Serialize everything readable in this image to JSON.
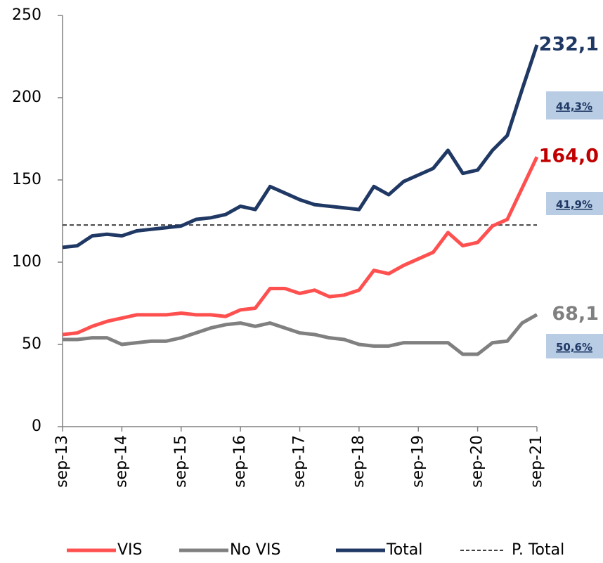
{
  "chart_data": {
    "type": "line",
    "categories": [
      "sep-13",
      null,
      null,
      null,
      "sep-14",
      null,
      null,
      null,
      "sep-15",
      null,
      null,
      null,
      "sep-16",
      null,
      null,
      null,
      "sep-17",
      null,
      null,
      null,
      "sep-18",
      null,
      null,
      null,
      "sep-19",
      null,
      null,
      null,
      "sep-20",
      null,
      null,
      null,
      "sep-21"
    ],
    "series": [
      {
        "name": "VIS",
        "color": "#ff5050",
        "label_color": "#c00000",
        "values": [
          56,
          57,
          61,
          64,
          66,
          68,
          68,
          68,
          69,
          68,
          68,
          67,
          71,
          72,
          84,
          84,
          81,
          83,
          79,
          80,
          83,
          95,
          93,
          98,
          102,
          106,
          118,
          110,
          112,
          122,
          126,
          145,
          164.0
        ],
        "value_labels": [
          null,
          null,
          null,
          null,
          null,
          null,
          null,
          null,
          null,
          null,
          null,
          null,
          null,
          null,
          null,
          null,
          null,
          null,
          null,
          null,
          null,
          null,
          null,
          null,
          null,
          null,
          null,
          null,
          null,
          null,
          null,
          null,
          "164,0"
        ]
      },
      {
        "name": "No VIS",
        "color": "#808080",
        "label_color": "#808080",
        "values": [
          53,
          53,
          54,
          54,
          50,
          51,
          52,
          52,
          54,
          57,
          60,
          62,
          63,
          61,
          63,
          60,
          57,
          56,
          54,
          53,
          50,
          49,
          49,
          51,
          51,
          51,
          51,
          44,
          44,
          51,
          52,
          63,
          68.1
        ],
        "value_labels": [
          null,
          null,
          null,
          null,
          null,
          null,
          null,
          null,
          null,
          null,
          null,
          null,
          null,
          null,
          null,
          null,
          null,
          null,
          null,
          null,
          null,
          null,
          null,
          null,
          null,
          null,
          null,
          null,
          null,
          null,
          null,
          null,
          "68,1"
        ]
      },
      {
        "name": "Total",
        "color": "#1f3864",
        "label_color": "#1f3864",
        "values": [
          109,
          110,
          116,
          117,
          116,
          119,
          120,
          121,
          122,
          126,
          127,
          129,
          134,
          132,
          146,
          142,
          138,
          135,
          134,
          133,
          132,
          146,
          141,
          149,
          153,
          157,
          168,
          154,
          156,
          168,
          177,
          205,
          232.1
        ],
        "value_labels": [
          null,
          null,
          null,
          null,
          null,
          null,
          null,
          null,
          null,
          null,
          null,
          null,
          null,
          null,
          null,
          null,
          null,
          null,
          null,
          null,
          null,
          null,
          null,
          null,
          null,
          null,
          null,
          null,
          null,
          null,
          null,
          null,
          "232,1"
        ]
      }
    ],
    "reference_line": {
      "name": "P. Total",
      "value": 122.6,
      "color": "#404040"
    },
    "annotations": [
      "44,3%",
      "41,9%",
      "50,6%"
    ],
    "annotation_color": "#b8cce4",
    "ylim": [
      0,
      250
    ],
    "yticks": [
      0,
      50,
      100,
      150,
      200,
      250
    ]
  }
}
